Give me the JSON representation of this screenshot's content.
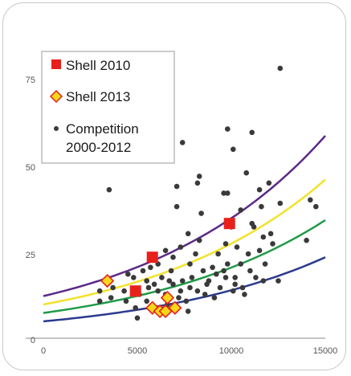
{
  "chart_data": {
    "type": "scatter",
    "xlim": [
      0,
      15000
    ],
    "ylim": [
      0,
      85
    ],
    "x_ticks": [
      "0",
      "5000",
      "10000",
      "15000"
    ],
    "y_ticks": [
      "0",
      "25",
      "50",
      "75"
    ],
    "grid": false,
    "legend_position": "top-left",
    "legend": [
      {
        "label": "Shell 2010",
        "marker": "square",
        "color": "#e8201c"
      },
      {
        "label": "Shell 2013",
        "marker": "diamond",
        "color": "#f5d81a"
      },
      {
        "label": "Competition",
        "label2": "2000-2012",
        "marker": "dot",
        "color": "#3a3a3a"
      }
    ],
    "series": [
      {
        "name": "Shell 2010",
        "points": [
          [
            4900,
            14
          ],
          [
            5800,
            24
          ],
          [
            9900,
            34
          ]
        ]
      },
      {
        "name": "Shell 2013",
        "points": [
          [
            3400,
            17
          ],
          [
            5800,
            9
          ],
          [
            6200,
            8
          ],
          [
            6500,
            8
          ],
          [
            6600,
            12
          ],
          [
            7000,
            9
          ]
        ]
      },
      {
        "name": "Competition 2000-2012",
        "points": [
          [
            12600,
            80
          ],
          [
            9800,
            62
          ],
          [
            7400,
            58
          ],
          [
            11100,
            61
          ],
          [
            10100,
            56
          ],
          [
            8300,
            48
          ],
          [
            8200,
            46
          ],
          [
            9600,
            43
          ],
          [
            9800,
            43
          ],
          [
            7100,
            45
          ],
          [
            11500,
            44
          ],
          [
            3500,
            44
          ],
          [
            12000,
            46
          ],
          [
            14200,
            41
          ],
          [
            12600,
            40
          ],
          [
            7100,
            39
          ],
          [
            10800,
            49
          ],
          [
            11600,
            39
          ],
          [
            14500,
            39
          ],
          [
            10500,
            38
          ],
          [
            8400,
            37
          ],
          [
            11100,
            34
          ],
          [
            11200,
            33
          ],
          [
            10000,
            33
          ],
          [
            7700,
            31
          ],
          [
            8300,
            29
          ],
          [
            9700,
            28
          ],
          [
            10300,
            27
          ],
          [
            11700,
            30
          ],
          [
            12100,
            31
          ],
          [
            14000,
            29
          ],
          [
            6500,
            26
          ],
          [
            6900,
            24
          ],
          [
            7300,
            27
          ],
          [
            8100,
            25
          ],
          [
            9300,
            25
          ],
          [
            10900,
            25
          ],
          [
            11500,
            26
          ],
          [
            12200,
            28
          ],
          [
            5300,
            20
          ],
          [
            5700,
            21
          ],
          [
            6100,
            22
          ],
          [
            6800,
            20
          ],
          [
            7800,
            22
          ],
          [
            8500,
            20
          ],
          [
            9600,
            20
          ],
          [
            9800,
            22
          ],
          [
            10500,
            22
          ],
          [
            11000,
            20
          ],
          [
            11800,
            22
          ],
          [
            4500,
            19
          ],
          [
            4800,
            18
          ],
          [
            5500,
            17
          ],
          [
            5900,
            16
          ],
          [
            6300,
            18
          ],
          [
            6700,
            17
          ],
          [
            7400,
            17
          ],
          [
            7900,
            18
          ],
          [
            8800,
            17
          ],
          [
            9200,
            19
          ],
          [
            9700,
            18
          ],
          [
            10200,
            16
          ],
          [
            11300,
            18
          ],
          [
            11700,
            17
          ],
          [
            12500,
            17
          ],
          [
            3000,
            14
          ],
          [
            3700,
            15
          ],
          [
            4300,
            14
          ],
          [
            5100,
            13
          ],
          [
            5600,
            15
          ],
          [
            6100,
            14
          ],
          [
            6500,
            13
          ],
          [
            6900,
            16
          ],
          [
            7300,
            14
          ],
          [
            7800,
            15
          ],
          [
            8200,
            14
          ],
          [
            8700,
            16
          ],
          [
            9400,
            15
          ],
          [
            10100,
            14
          ],
          [
            10600,
            15
          ],
          [
            3000,
            11
          ],
          [
            3600,
            12
          ],
          [
            4400,
            11
          ],
          [
            5500,
            11
          ],
          [
            7200,
            12
          ],
          [
            8600,
            13
          ],
          [
            9100,
            12
          ],
          [
            10700,
            13
          ],
          [
            4900,
            9
          ],
          [
            6600,
            10
          ],
          [
            7600,
            11
          ],
          [
            5000,
            6
          ],
          [
            7700,
            8
          ],
          [
            10200,
            18
          ],
          [
            9000,
            21
          ]
        ]
      }
    ],
    "curves": [
      {
        "color": "#5b2a86",
        "y_at_0": 12.5,
        "y_at_15000": 60
      },
      {
        "color": "#f2e22a",
        "y_at_0": 10.0,
        "y_at_15000": 47
      },
      {
        "color": "#1f9a48",
        "y_at_0": 7.5,
        "y_at_15000": 35
      },
      {
        "color": "#2c3a8f",
        "y_at_0": 5.0,
        "y_at_15000": 24
      }
    ]
  }
}
